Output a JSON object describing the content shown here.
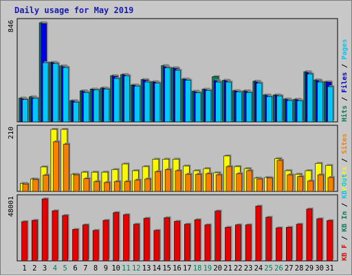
{
  "title": "Daily usage for May 2019",
  "colors": {
    "background": "#c8c8c8",
    "plot_background": "#c0c0c0",
    "hits": "#00805c",
    "files": "#0000e0",
    "pages": "#00c8f8",
    "visits": "#f8f800",
    "sites": "#f88000",
    "kbin": "#00805c",
    "kbout": "#00c8f8",
    "kbf": "#e80000",
    "weekend": "#00805c",
    "weekday": "#000000"
  },
  "chart_data": [
    {
      "type": "bar",
      "name_top": "usage",
      "ytick": "846",
      "ylim": [
        0,
        846
      ],
      "legend": [
        {
          "label": "Hits",
          "color": "#00805c"
        },
        {
          "label": "Files",
          "color": "#0000e0"
        },
        {
          "label": "Pages",
          "color": "#00c8f8"
        }
      ],
      "categories": [
        "1",
        "2",
        "3",
        "4",
        "5",
        "6",
        "7",
        "8",
        "9",
        "10",
        "11",
        "12",
        "13",
        "14",
        "15",
        "16",
        "17",
        "18",
        "19",
        "20",
        "21",
        "22",
        "23",
        "24",
        "25",
        "26",
        "27",
        "28",
        "29",
        "30",
        "31"
      ],
      "series": [
        {
          "name": "Hits",
          "values": [
            203,
            214,
            846,
            508,
            478,
            181,
            265,
            280,
            290,
            394,
            404,
            315,
            361,
            343,
            480,
            462,
            366,
            262,
            279,
            386,
            355,
            266,
            265,
            347,
            230,
            230,
            195,
            193,
            428,
            358,
            342
          ]
        },
        {
          "name": "Files",
          "values": [
            196,
            205,
            838,
            505,
            470,
            178,
            260,
            275,
            285,
            388,
            400,
            312,
            356,
            338,
            470,
            455,
            362,
            255,
            274,
            352,
            350,
            262,
            260,
            340,
            225,
            226,
            190,
            188,
            420,
            352,
            338
          ]
        },
        {
          "name": "Pages",
          "values": [
            190,
            200,
            505,
            498,
            464,
            168,
            250,
            272,
            280,
            370,
            393,
            305,
            340,
            330,
            460,
            440,
            355,
            248,
            268,
            340,
            340,
            254,
            250,
            330,
            215,
            222,
            182,
            180,
            408,
            340,
            300
          ]
        }
      ]
    },
    {
      "type": "bar",
      "ytick": "210",
      "ylim": [
        0,
        210
      ],
      "legend": [
        {
          "label": "Visits",
          "color": "#f8f800"
        },
        {
          "label": "Sites",
          "color": "#f88000"
        }
      ],
      "categories": [
        "1",
        "2",
        "3",
        "4",
        "5",
        "6",
        "7",
        "8",
        "9",
        "10",
        "11",
        "12",
        "13",
        "14",
        "15",
        "16",
        "17",
        "18",
        "19",
        "20",
        "21",
        "22",
        "23",
        "24",
        "25",
        "26",
        "27",
        "28",
        "29",
        "30",
        "31"
      ],
      "series": [
        {
          "name": "Visits",
          "values": [
            27,
            42,
            83,
            210,
            210,
            58,
            65,
            65,
            65,
            74,
            93,
            70,
            84,
            109,
            109,
            109,
            86,
            70,
            77,
            63,
            120,
            84,
            77,
            45,
            47,
            111,
            70,
            58,
            70,
            95,
            88
          ]
        },
        {
          "name": "Sites",
          "values": [
            25,
            40,
            55,
            168,
            160,
            56,
            43,
            33,
            30,
            33,
            33,
            38,
            42,
            67,
            74,
            70,
            58,
            58,
            60,
            56,
            84,
            60,
            70,
            42,
            45,
            105,
            56,
            50,
            35,
            56,
            47
          ]
        }
      ]
    },
    {
      "type": "bar",
      "ytick": "48001",
      "ylim": [
        0,
        48001
      ],
      "legend": [
        {
          "label": "KB F",
          "color": "#e80000"
        },
        {
          "label": "KB In",
          "color": "#00805c"
        },
        {
          "label": "KB Out",
          "color": "#00c8f8"
        }
      ],
      "categories": [
        "1",
        "2",
        "3",
        "4",
        "5",
        "6",
        "7",
        "8",
        "9",
        "10",
        "11",
        "12",
        "13",
        "14",
        "15",
        "16",
        "17",
        "18",
        "19",
        "20",
        "21",
        "22",
        "23",
        "24",
        "25",
        "26",
        "27",
        "28",
        "29",
        "30",
        "31"
      ],
      "series": [
        {
          "name": "KB F",
          "values": [
            30400,
            31400,
            48001,
            38800,
            35200,
            24400,
            27900,
            23600,
            31400,
            37400,
            35800,
            28400,
            33000,
            23600,
            33400,
            30600,
            28400,
            31900,
            27900,
            38600,
            26000,
            27900,
            27900,
            42400,
            33800,
            25600,
            26000,
            28400,
            40200,
            32600,
            31200
          ]
        }
      ]
    }
  ],
  "weekend_days": [
    4,
    5,
    11,
    12,
    18,
    19,
    25,
    26
  ]
}
